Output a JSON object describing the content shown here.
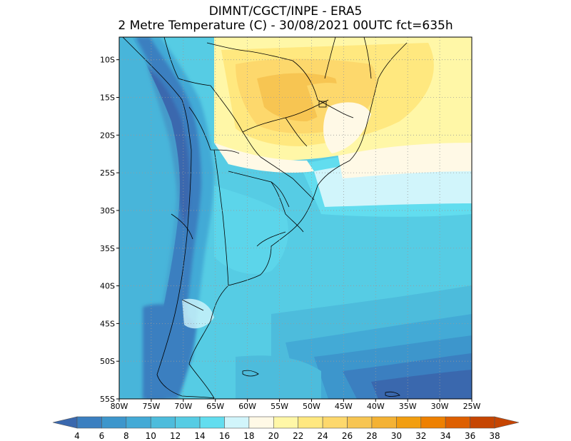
{
  "title_line1": "DIMNT/CGCT/INPE  -   ERA5",
  "title_line2": "2 Metre Temperature (C)  -   30/08/2021 00UTC fct=635h",
  "map": {
    "lon_range": [
      -80,
      -25
    ],
    "lat_range": [
      -55,
      -7
    ],
    "lat_ticks": [
      {
        "value": -10,
        "label": "10S"
      },
      {
        "value": -15,
        "label": "15S"
      },
      {
        "value": -20,
        "label": "20S"
      },
      {
        "value": -25,
        "label": "25S"
      },
      {
        "value": -30,
        "label": "30S"
      },
      {
        "value": -35,
        "label": "35S"
      },
      {
        "value": -40,
        "label": "40S"
      },
      {
        "value": -45,
        "label": "45S"
      },
      {
        "value": -50,
        "label": "50S"
      },
      {
        "value": -55,
        "label": "55S"
      }
    ],
    "lon_ticks": [
      {
        "value": -80,
        "label": "80W"
      },
      {
        "value": -75,
        "label": "75W"
      },
      {
        "value": -70,
        "label": "70W"
      },
      {
        "value": -65,
        "label": "65W"
      },
      {
        "value": -60,
        "label": "60W"
      },
      {
        "value": -55,
        "label": "55W"
      },
      {
        "value": -50,
        "label": "50W"
      },
      {
        "value": -45,
        "label": "45W"
      },
      {
        "value": -40,
        "label": "40W"
      },
      {
        "value": -35,
        "label": "35W"
      },
      {
        "value": -30,
        "label": "30W"
      },
      {
        "value": -25,
        "label": "25W"
      }
    ],
    "grid": "dotted"
  },
  "colorbar": {
    "labels": [
      "4",
      "6",
      "8",
      "10",
      "12",
      "14",
      "16",
      "18",
      "20",
      "22",
      "24",
      "26",
      "28",
      "30",
      "32",
      "34",
      "36",
      "38"
    ],
    "colors": [
      "#3a68ae",
      "#3b7fc0",
      "#3d96cc",
      "#43aad6",
      "#4dbcdc",
      "#56cce4",
      "#62ddef",
      "#d1f5fb",
      "#fff9e6",
      "#fff7a7",
      "#ffe87f",
      "#fdd86c",
      "#f7c552",
      "#f4b234",
      "#f29e10",
      "#ee8000",
      "#de5f00",
      "#c64502"
    ],
    "extend": "both"
  },
  "colors": {
    "c_4_6": "#3a68ae",
    "c_6_8": "#3b7fc0",
    "c_8_10": "#3d96cc",
    "c_10_12": "#43aad6",
    "c_12_14": "#4dbcdc",
    "c_14_16": "#56cce4",
    "c_16_18": "#62ddef",
    "c_18_20": "#d1f5fb",
    "c_20_22": "#fff9e6",
    "c_22_24": "#fff7a7",
    "c_24_26": "#ffe87f",
    "c_26_28": "#fdd86c",
    "c_28_30": "#f7c552"
  }
}
